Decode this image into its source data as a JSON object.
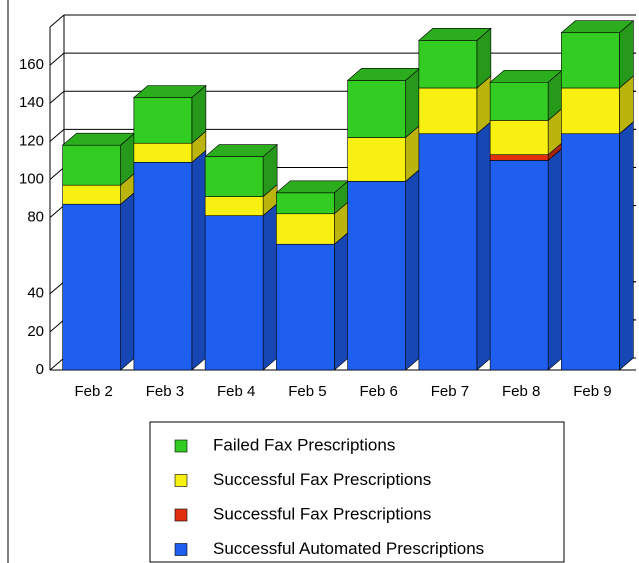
{
  "chart_data": {
    "type": "stacked-bar-3d",
    "categories": [
      "Feb 2",
      "Feb 3",
      "Feb 4",
      "Feb 5",
      "Feb 6",
      "Feb 7",
      "Feb 8",
      "Feb 9"
    ],
    "series": [
      {
        "name": "Successful Automated Prescriptions",
        "color": "#1f5ff0",
        "values": [
          87,
          109,
          81,
          66,
          99,
          124,
          110,
          124
        ]
      },
      {
        "name": "Successful Fax Prescriptions",
        "color": "#e03010",
        "values": [
          0,
          0,
          0,
          0,
          0,
          0,
          3,
          0
        ]
      },
      {
        "name": "Successful Fax Prescriptions",
        "color": "#f8f010",
        "values": [
          10,
          10,
          10,
          16,
          23,
          24,
          18,
          24
        ]
      },
      {
        "name": "Failed Fax Prescriptions",
        "color": "#33cc22",
        "values": [
          21,
          24,
          21,
          11,
          30,
          25,
          20,
          29
        ]
      }
    ],
    "ylim": [
      0,
      180
    ],
    "yticks": [
      0,
      20,
      40,
      80,
      100,
      120,
      140,
      160
    ],
    "grid": true
  }
}
